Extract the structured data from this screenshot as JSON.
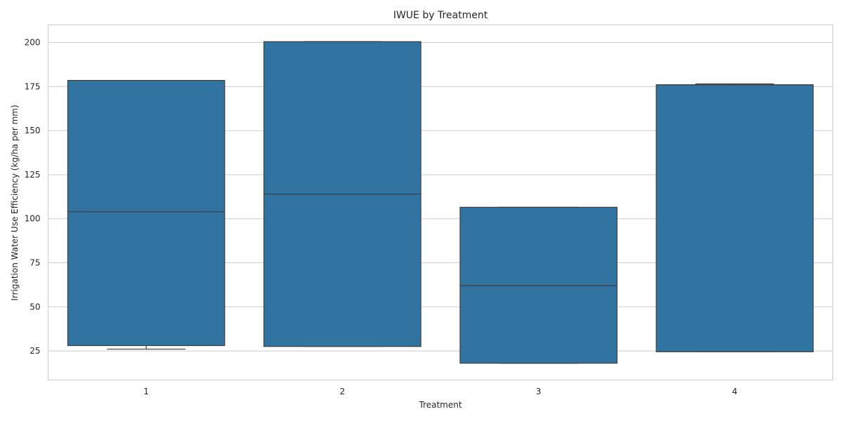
{
  "chart_data": {
    "type": "box",
    "title": "IWUE by Treatment",
    "xlabel": "Treatment",
    "ylabel": "Irrigation Water Use Efficiency (kg/ha per mm)",
    "categories": [
      "1",
      "2",
      "3",
      "4"
    ],
    "boxes": [
      {
        "category": "1",
        "whisker_low": 26,
        "q1": 28,
        "median": 104,
        "q3": 178.5,
        "whisker_high": 178.5
      },
      {
        "category": "2",
        "whisker_low": 27.5,
        "q1": 27.5,
        "median": 114,
        "q3": 200.5,
        "whisker_high": 200.5
      },
      {
        "category": "3",
        "whisker_low": 18,
        "q1": 18,
        "median": 62,
        "q3": 106.5,
        "whisker_high": 106.5
      },
      {
        "category": "4",
        "whisker_low": 24.5,
        "q1": 24.5,
        "median": 176,
        "q3": 176,
        "whisker_high": 176.5
      }
    ],
    "y_ticks": [
      25,
      50,
      75,
      100,
      125,
      150,
      175,
      200
    ],
    "ylim": [
      8.5,
      210
    ],
    "grid": true,
    "colors": {
      "box_fill": "#3274a1",
      "box_edge": "#3d3d3d",
      "grid": "#cccccc",
      "frame": "#cccccc"
    }
  }
}
